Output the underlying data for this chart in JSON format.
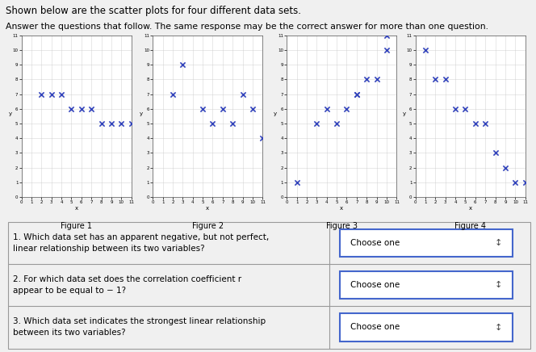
{
  "title_line1": "Shown below are the scatter plots for four different data sets.",
  "title_line2": "Answer the questions that follow. The same response may be the correct answer for more than one question.",
  "fig1": {
    "x": [
      2,
      3,
      4,
      5,
      6,
      7,
      8,
      9,
      10,
      11
    ],
    "y": [
      7,
      7,
      7,
      6,
      6,
      6,
      5,
      5,
      5,
      5
    ],
    "label": "Figure 1"
  },
  "fig2": {
    "x": [
      2,
      3,
      5,
      6,
      7,
      8,
      9,
      10,
      11
    ],
    "y": [
      7,
      9,
      6,
      5,
      6,
      5,
      7,
      6,
      4
    ],
    "label": "Figure 2"
  },
  "fig3": {
    "x": [
      1,
      3,
      4,
      5,
      6,
      7,
      7,
      8,
      9,
      10,
      10
    ],
    "y": [
      1,
      5,
      6,
      5,
      6,
      7,
      7,
      8,
      8,
      10,
      11
    ],
    "label": "Figure 3"
  },
  "fig4": {
    "x": [
      1,
      2,
      3,
      4,
      5,
      6,
      7,
      8,
      9,
      10,
      11
    ],
    "y": [
      10,
      8,
      8,
      6,
      6,
      5,
      5,
      3,
      2,
      1,
      1
    ],
    "label": "Figure 4"
  },
  "marker_color": "#3344bb",
  "marker_size": 20,
  "marker_linewidth": 1.2,
  "bg_color_fig": "#f0f0f0",
  "bg_color_plot": "#ffffff",
  "xlim": [
    0,
    11
  ],
  "ylim": [
    0,
    11
  ],
  "xticks": [
    0,
    1,
    2,
    3,
    4,
    5,
    6,
    7,
    8,
    9,
    10,
    11
  ],
  "yticks": [
    0,
    1,
    2,
    3,
    4,
    5,
    6,
    7,
    8,
    9,
    10,
    11
  ],
  "questions": [
    "1. Which data set has an apparent negative, but not perfect,\nlinear relationship between its two variables?",
    "2. For which data set does the correlation coefficient r\nappear to be equal to − 1?",
    "3. Which data set indicates the strongest linear relationship\nbetween its two variables?"
  ],
  "dropdown_label": "Choose one",
  "dropdown_border_color": "#4466cc",
  "table_border_color": "#999999",
  "fig_width": 6.64,
  "fig_height": 4.36
}
